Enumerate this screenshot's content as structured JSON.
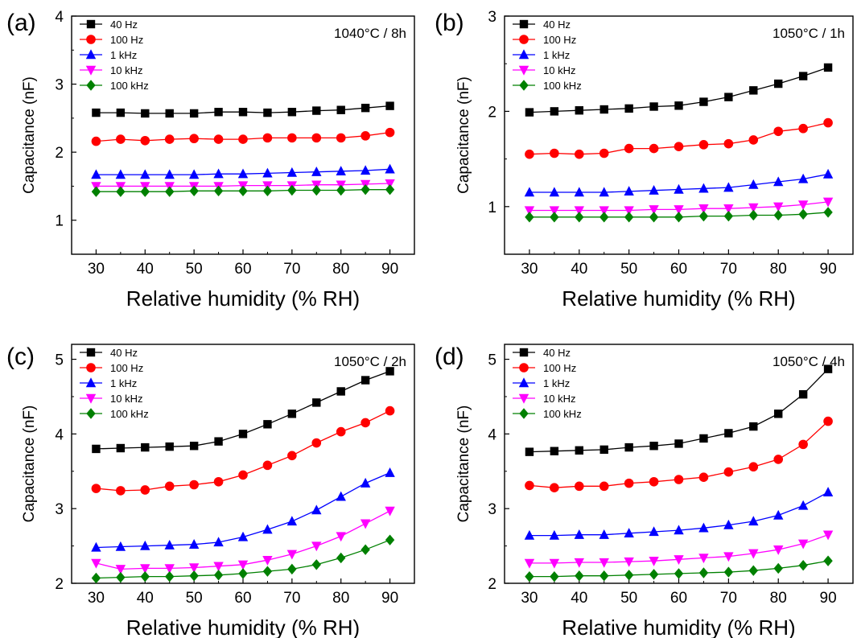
{
  "figure": {
    "xlabel": "Relative humidity (% RH)",
    "ylabel": "Capacitance (nF)"
  },
  "chart_data": [
    {
      "type": "line",
      "panel_label": "(a)",
      "condition": "1040°C / 8h",
      "xlabel": "Relative humidity (% RH)",
      "ylabel": "Capacitance (nF)",
      "xlim": [
        25,
        95
      ],
      "ylim": [
        0.5,
        4
      ],
      "xticks": [
        30,
        40,
        50,
        60,
        70,
        80,
        90
      ],
      "yticks": [
        1,
        2,
        3,
        4
      ],
      "legend_position": "top-left",
      "x": [
        30,
        35,
        40,
        45,
        50,
        55,
        60,
        65,
        70,
        75,
        80,
        85,
        90
      ],
      "series": [
        {
          "name": "40 Hz",
          "color": "#000000",
          "marker": "square",
          "values": [
            2.58,
            2.58,
            2.57,
            2.57,
            2.57,
            2.59,
            2.59,
            2.58,
            2.59,
            2.61,
            2.62,
            2.65,
            2.68
          ]
        },
        {
          "name": "100 Hz",
          "color": "#ff0000",
          "marker": "circle",
          "values": [
            2.16,
            2.19,
            2.17,
            2.19,
            2.2,
            2.19,
            2.19,
            2.21,
            2.21,
            2.21,
            2.21,
            2.24,
            2.29
          ]
        },
        {
          "name": "1 kHz",
          "color": "#0000ff",
          "marker": "triangle-up",
          "values": [
            1.67,
            1.67,
            1.67,
            1.67,
            1.67,
            1.68,
            1.68,
            1.69,
            1.7,
            1.71,
            1.72,
            1.73,
            1.75
          ]
        },
        {
          "name": "10 kHz",
          "color": "#ff00ff",
          "marker": "triangle-down",
          "values": [
            1.5,
            1.5,
            1.5,
            1.5,
            1.5,
            1.5,
            1.51,
            1.51,
            1.51,
            1.52,
            1.52,
            1.53,
            1.54
          ]
        },
        {
          "name": "100 kHz",
          "color": "#008000",
          "marker": "diamond",
          "values": [
            1.42,
            1.42,
            1.42,
            1.42,
            1.43,
            1.43,
            1.43,
            1.43,
            1.44,
            1.44,
            1.44,
            1.45,
            1.45
          ]
        }
      ]
    },
    {
      "type": "line",
      "panel_label": "(b)",
      "condition": "1050°C / 1h",
      "xlabel": "Relative humidity (% RH)",
      "ylabel": "Capacitance (nF)",
      "xlim": [
        25,
        95
      ],
      "ylim": [
        0.5,
        3
      ],
      "xticks": [
        30,
        40,
        50,
        60,
        70,
        80,
        90
      ],
      "yticks": [
        1,
        2,
        3
      ],
      "legend_position": "top-left",
      "x": [
        30,
        35,
        40,
        45,
        50,
        55,
        60,
        65,
        70,
        75,
        80,
        85,
        90
      ],
      "series": [
        {
          "name": "40 Hz",
          "color": "#000000",
          "marker": "square",
          "values": [
            1.99,
            2.0,
            2.01,
            2.02,
            2.03,
            2.05,
            2.06,
            2.1,
            2.15,
            2.22,
            2.29,
            2.37,
            2.46
          ]
        },
        {
          "name": "100 Hz",
          "color": "#ff0000",
          "marker": "circle",
          "values": [
            1.55,
            1.56,
            1.55,
            1.56,
            1.61,
            1.61,
            1.63,
            1.65,
            1.66,
            1.7,
            1.79,
            1.82,
            1.88
          ]
        },
        {
          "name": "1 kHz",
          "color": "#0000ff",
          "marker": "triangle-up",
          "values": [
            1.15,
            1.15,
            1.15,
            1.15,
            1.16,
            1.17,
            1.18,
            1.19,
            1.2,
            1.23,
            1.26,
            1.29,
            1.34
          ]
        },
        {
          "name": "10 kHz",
          "color": "#ff00ff",
          "marker": "triangle-down",
          "values": [
            0.96,
            0.96,
            0.96,
            0.96,
            0.96,
            0.97,
            0.97,
            0.98,
            0.98,
            0.99,
            1.0,
            1.02,
            1.05
          ]
        },
        {
          "name": "100 kHz",
          "color": "#008000",
          "marker": "diamond",
          "values": [
            0.89,
            0.89,
            0.89,
            0.89,
            0.89,
            0.89,
            0.89,
            0.9,
            0.9,
            0.91,
            0.91,
            0.92,
            0.94
          ]
        }
      ]
    },
    {
      "type": "line",
      "panel_label": "(c)",
      "condition": "1050°C / 2h",
      "xlabel": "Relative humidity (% RH)",
      "ylabel": "Capacitance (nF)",
      "xlim": [
        25,
        95
      ],
      "ylim": [
        2,
        5.2
      ],
      "xticks": [
        30,
        40,
        50,
        60,
        70,
        80,
        90
      ],
      "yticks": [
        2,
        3,
        4,
        5
      ],
      "legend_position": "top-left",
      "x": [
        30,
        35,
        40,
        45,
        50,
        55,
        60,
        65,
        70,
        75,
        80,
        85,
        90
      ],
      "series": [
        {
          "name": "40 Hz",
          "color": "#000000",
          "marker": "square",
          "values": [
            3.8,
            3.81,
            3.82,
            3.83,
            3.84,
            3.9,
            4.0,
            4.13,
            4.27,
            4.42,
            4.57,
            4.72,
            4.84
          ]
        },
        {
          "name": "100 Hz",
          "color": "#ff0000",
          "marker": "circle",
          "values": [
            3.27,
            3.24,
            3.25,
            3.3,
            3.32,
            3.36,
            3.45,
            3.58,
            3.71,
            3.88,
            4.03,
            4.15,
            4.31
          ]
        },
        {
          "name": "1 kHz",
          "color": "#0000ff",
          "marker": "triangle-up",
          "values": [
            2.48,
            2.49,
            2.5,
            2.51,
            2.52,
            2.55,
            2.62,
            2.72,
            2.83,
            2.98,
            3.16,
            3.34,
            3.48
          ]
        },
        {
          "name": "10 kHz",
          "color": "#ff00ff",
          "marker": "triangle-down",
          "values": [
            2.27,
            2.19,
            2.2,
            2.2,
            2.21,
            2.23,
            2.25,
            2.31,
            2.39,
            2.5,
            2.63,
            2.8,
            2.97
          ]
        },
        {
          "name": "100 kHz",
          "color": "#008000",
          "marker": "diamond",
          "values": [
            2.07,
            2.08,
            2.09,
            2.09,
            2.1,
            2.11,
            2.13,
            2.16,
            2.19,
            2.25,
            2.34,
            2.45,
            2.58
          ]
        }
      ]
    },
    {
      "type": "line",
      "panel_label": "(d)",
      "condition": "1050°C / 4h",
      "xlabel": "Relative humidity (% RH)",
      "ylabel": "Capacitance (nF)",
      "xlim": [
        25,
        95
      ],
      "ylim": [
        2,
        5.2
      ],
      "xticks": [
        30,
        40,
        50,
        60,
        70,
        80,
        90
      ],
      "yticks": [
        2,
        3,
        4,
        5
      ],
      "legend_position": "top-left",
      "x": [
        30,
        35,
        40,
        45,
        50,
        55,
        60,
        65,
        70,
        75,
        80,
        85,
        90
      ],
      "series": [
        {
          "name": "40 Hz",
          "color": "#000000",
          "marker": "square",
          "values": [
            3.76,
            3.77,
            3.78,
            3.79,
            3.82,
            3.84,
            3.87,
            3.94,
            4.01,
            4.1,
            4.27,
            4.53,
            4.87
          ]
        },
        {
          "name": "100 Hz",
          "color": "#ff0000",
          "marker": "circle",
          "values": [
            3.31,
            3.28,
            3.3,
            3.3,
            3.34,
            3.36,
            3.39,
            3.42,
            3.49,
            3.56,
            3.66,
            3.86,
            4.17
          ]
        },
        {
          "name": "1 kHz",
          "color": "#0000ff",
          "marker": "triangle-up",
          "values": [
            2.64,
            2.64,
            2.65,
            2.65,
            2.67,
            2.69,
            2.71,
            2.74,
            2.78,
            2.83,
            2.91,
            3.04,
            3.22
          ]
        },
        {
          "name": "10 kHz",
          "color": "#ff00ff",
          "marker": "triangle-down",
          "values": [
            2.27,
            2.27,
            2.28,
            2.28,
            2.29,
            2.3,
            2.32,
            2.34,
            2.36,
            2.4,
            2.45,
            2.53,
            2.65
          ]
        },
        {
          "name": "100 kHz",
          "color": "#008000",
          "marker": "diamond",
          "values": [
            2.09,
            2.09,
            2.1,
            2.1,
            2.11,
            2.12,
            2.13,
            2.14,
            2.15,
            2.17,
            2.2,
            2.24,
            2.3
          ]
        }
      ]
    }
  ]
}
